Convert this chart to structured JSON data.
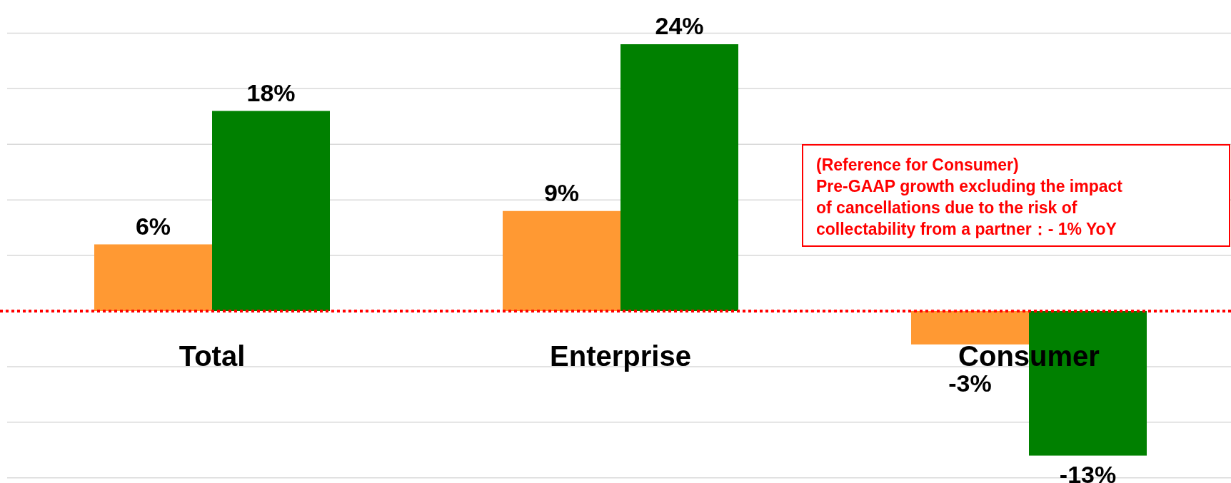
{
  "chart_data": {
    "type": "bar",
    "categories": [
      "Total",
      "Enterprise",
      "Consumer"
    ],
    "series": [
      {
        "color": "#ff9933",
        "values": [
          6,
          9,
          -3
        ],
        "value_labels": [
          "6%",
          "9%",
          "-3%"
        ]
      },
      {
        "color": "#008000",
        "values": [
          18,
          24,
          -13
        ],
        "value_labels": [
          "18%",
          "24%",
          "-13%"
        ]
      }
    ],
    "grid": "y",
    "ref_lines": [
      {
        "axis": "y",
        "value": 0,
        "color": "#ff0000",
        "line_style": "dotted"
      }
    ],
    "annotations": [
      "(Reference for Consumer)\nPre-GAAP growth excluding the impact\nof cancellations due to the risk of\ncollectability from a partner：- 1% YoY"
    ]
  }
}
